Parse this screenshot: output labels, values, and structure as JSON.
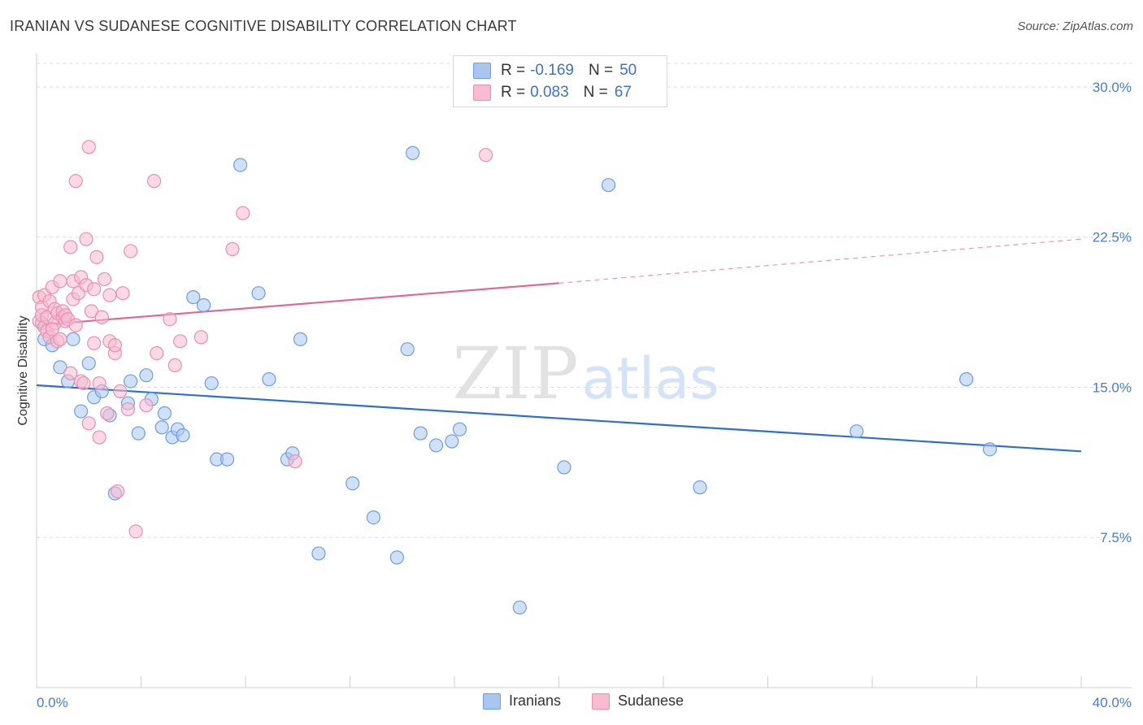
{
  "title": "IRANIAN VS SUDANESE COGNITIVE DISABILITY CORRELATION CHART",
  "source": "Source: ZipAtlas.com",
  "watermark": {
    "zip": "ZIP",
    "atlas": "atlas"
  },
  "legend_top": [
    {
      "r_label": "R = ",
      "r_value": "-0.169",
      "n_label": "N = ",
      "n_value": "50",
      "color": "#a8c6f0",
      "border": "#6e9fe0"
    },
    {
      "r_label": "R = ",
      "r_value": "0.083",
      "n_label": "N = ",
      "n_value": "67",
      "color": "#f7bcd0",
      "border": "#ec8fb0"
    }
  ],
  "legend_bottom": [
    {
      "label": "Iranians",
      "color": "#a8c6f0",
      "border": "#6e9fe0"
    },
    {
      "label": "Sudanese",
      "color": "#f7bcd0",
      "border": "#ec8fb0"
    }
  ],
  "chart_data": {
    "type": "scatter",
    "title": "IRANIAN VS SUDANESE COGNITIVE DISABILITY CORRELATION CHART",
    "xlabel": "",
    "ylabel": "Cognitive Disability",
    "xlim": [
      0,
      40
    ],
    "ylim": [
      0,
      31.5
    ],
    "x_tick_labels": [
      "0.0%",
      "40.0%"
    ],
    "y_ticks": [
      7.5,
      15.0,
      22.5,
      30.0
    ],
    "y_tick_labels": [
      "7.5%",
      "15.0%",
      "22.5%",
      "30.0%"
    ],
    "grid": "horizontal dashed",
    "legend": "top-center",
    "series": [
      {
        "name": "Iranians",
        "color": "#6e9fe0",
        "fill": "#a8c6f0",
        "trend": {
          "x": [
            0,
            40
          ],
          "y": [
            15.1,
            11.8
          ],
          "color": "#2f6fcc"
        },
        "points": [
          [
            0.3,
            17.4
          ],
          [
            0.6,
            17.1
          ],
          [
            0.9,
            16.0
          ],
          [
            1.2,
            15.3
          ],
          [
            1.4,
            17.4
          ],
          [
            1.7,
            13.8
          ],
          [
            2.0,
            16.2
          ],
          [
            2.2,
            14.5
          ],
          [
            2.5,
            14.8
          ],
          [
            2.8,
            13.6
          ],
          [
            3.0,
            9.7
          ],
          [
            3.5,
            14.2
          ],
          [
            3.6,
            15.3
          ],
          [
            3.9,
            12.7
          ],
          [
            4.2,
            15.6
          ],
          [
            4.4,
            14.4
          ],
          [
            4.8,
            13.0
          ],
          [
            4.9,
            13.7
          ],
          [
            5.2,
            12.5
          ],
          [
            5.4,
            12.9
          ],
          [
            5.6,
            12.6
          ],
          [
            6.0,
            19.5
          ],
          [
            6.4,
            19.1
          ],
          [
            6.7,
            15.2
          ],
          [
            6.9,
            11.4
          ],
          [
            7.3,
            11.4
          ],
          [
            7.8,
            26.1
          ],
          [
            8.5,
            19.7
          ],
          [
            8.9,
            15.4
          ],
          [
            9.6,
            11.4
          ],
          [
            9.8,
            11.7
          ],
          [
            10.1,
            17.4
          ],
          [
            10.8,
            6.7
          ],
          [
            12.1,
            10.2
          ],
          [
            12.9,
            8.5
          ],
          [
            13.8,
            6.5
          ],
          [
            14.2,
            16.9
          ],
          [
            14.4,
            26.7
          ],
          [
            14.7,
            12.7
          ],
          [
            15.3,
            12.1
          ],
          [
            15.9,
            12.3
          ],
          [
            16.2,
            12.9
          ],
          [
            18.5,
            4.0
          ],
          [
            20.2,
            11.0
          ],
          [
            21.9,
            25.1
          ],
          [
            25.4,
            10.0
          ],
          [
            31.4,
            12.8
          ],
          [
            35.6,
            15.4
          ],
          [
            36.5,
            11.9
          ],
          [
            0.2,
            18.2
          ]
        ]
      },
      {
        "name": "Sudanese",
        "color": "#ec8fb0",
        "fill": "#f7bcd0",
        "trend": {
          "x": [
            0,
            20
          ],
          "y": [
            18.1,
            20.2
          ],
          "color": "#e06a94"
        },
        "trend_dashed": {
          "x": [
            20,
            40
          ],
          "y": [
            20.2,
            22.4
          ],
          "color": "#e89ab4"
        },
        "points": [
          [
            0.1,
            19.5
          ],
          [
            0.1,
            18.3
          ],
          [
            0.2,
            19.0
          ],
          [
            0.2,
            18.6
          ],
          [
            0.3,
            18.0
          ],
          [
            0.3,
            19.6
          ],
          [
            0.4,
            17.8
          ],
          [
            0.4,
            18.5
          ],
          [
            0.5,
            19.3
          ],
          [
            0.5,
            17.5
          ],
          [
            0.6,
            20.0
          ],
          [
            0.7,
            18.9
          ],
          [
            0.7,
            18.2
          ],
          [
            0.8,
            17.3
          ],
          [
            0.8,
            18.7
          ],
          [
            0.9,
            17.4
          ],
          [
            0.9,
            20.3
          ],
          [
            1.0,
            18.5
          ],
          [
            1.0,
            18.8
          ],
          [
            1.1,
            18.3
          ],
          [
            1.1,
            18.6
          ],
          [
            1.2,
            18.4
          ],
          [
            1.3,
            15.7
          ],
          [
            1.3,
            22.0
          ],
          [
            1.4,
            20.3
          ],
          [
            1.4,
            19.4
          ],
          [
            1.5,
            18.1
          ],
          [
            1.5,
            25.3
          ],
          [
            1.6,
            19.7
          ],
          [
            1.7,
            20.5
          ],
          [
            1.7,
            15.3
          ],
          [
            1.8,
            15.2
          ],
          [
            1.9,
            20.1
          ],
          [
            1.9,
            22.4
          ],
          [
            2.0,
            13.2
          ],
          [
            2.0,
            27.0
          ],
          [
            2.1,
            18.8
          ],
          [
            2.2,
            17.2
          ],
          [
            2.3,
            21.5
          ],
          [
            2.4,
            12.5
          ],
          [
            2.4,
            15.2
          ],
          [
            2.5,
            18.5
          ],
          [
            2.6,
            20.4
          ],
          [
            2.7,
            13.7
          ],
          [
            2.8,
            17.3
          ],
          [
            2.8,
            19.6
          ],
          [
            3.0,
            16.7
          ],
          [
            3.1,
            9.8
          ],
          [
            3.2,
            14.8
          ],
          [
            3.3,
            19.7
          ],
          [
            3.5,
            13.9
          ],
          [
            3.6,
            21.8
          ],
          [
            3.8,
            7.8
          ],
          [
            4.2,
            14.1
          ],
          [
            4.5,
            25.3
          ],
          [
            4.6,
            16.7
          ],
          [
            5.1,
            18.4
          ],
          [
            5.3,
            16.1
          ],
          [
            5.5,
            17.3
          ],
          [
            6.3,
            17.5
          ],
          [
            7.5,
            21.9
          ],
          [
            7.9,
            23.7
          ],
          [
            9.9,
            11.3
          ],
          [
            17.2,
            26.6
          ],
          [
            2.2,
            19.9
          ],
          [
            0.6,
            17.9
          ],
          [
            3.0,
            17.1
          ]
        ]
      }
    ]
  }
}
